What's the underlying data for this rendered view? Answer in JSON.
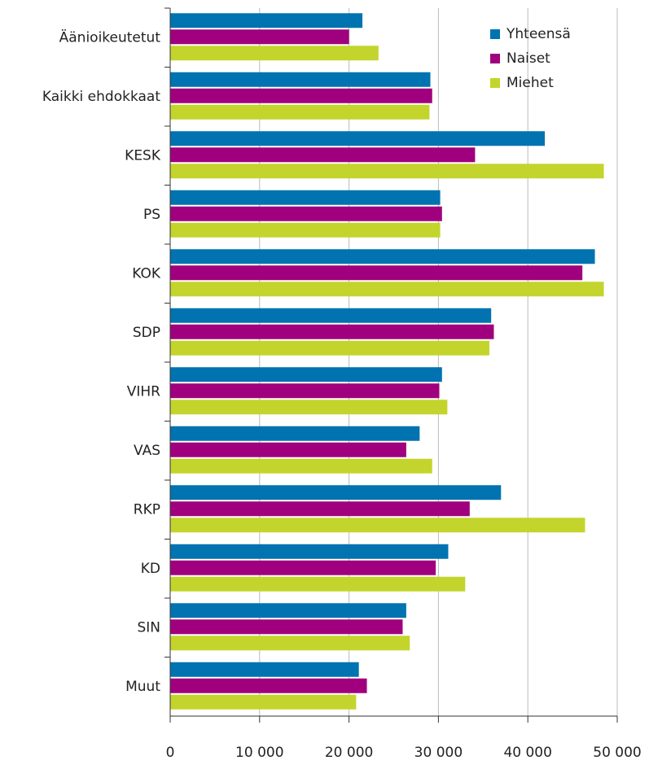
{
  "chart_data": {
    "type": "hbar",
    "categories": [
      "Äänioikeutetut",
      "Kaikki ehdokkaat",
      "KESK",
      "PS",
      "KOK",
      "SDP",
      "VIHR",
      "VAS",
      "RKP",
      "KD",
      "SIN",
      "Muut"
    ],
    "series": [
      {
        "name": "Yhteensä",
        "color": "#0073b0",
        "values": [
          21500,
          29100,
          41900,
          30200,
          47500,
          35900,
          30400,
          27900,
          37000,
          31100,
          26400,
          21100
        ]
      },
      {
        "name": "Naiset",
        "color": "#a0007d",
        "values": [
          20000,
          29300,
          34100,
          30400,
          46100,
          36200,
          30100,
          26400,
          33500,
          29700,
          26000,
          22000
        ]
      },
      {
        "name": "Miehet",
        "color": "#c3d52c",
        "values": [
          23300,
          29000,
          48500,
          30200,
          48500,
          35700,
          31000,
          29300,
          46400,
          33000,
          26800,
          20800
        ]
      }
    ],
    "xlim": [
      0,
      50000
    ],
    "xticks": [
      0,
      {
        "value": 10000,
        "label": "10 000"
      },
      {
        "value": 20000,
        "label": "20 000"
      },
      {
        "value": 30000,
        "label": "30 000"
      },
      {
        "value": 40000,
        "label": "40 000"
      },
      {
        "value": 50000,
        "label": "50 000"
      }
    ],
    "grid": true,
    "legend": "top-right"
  }
}
